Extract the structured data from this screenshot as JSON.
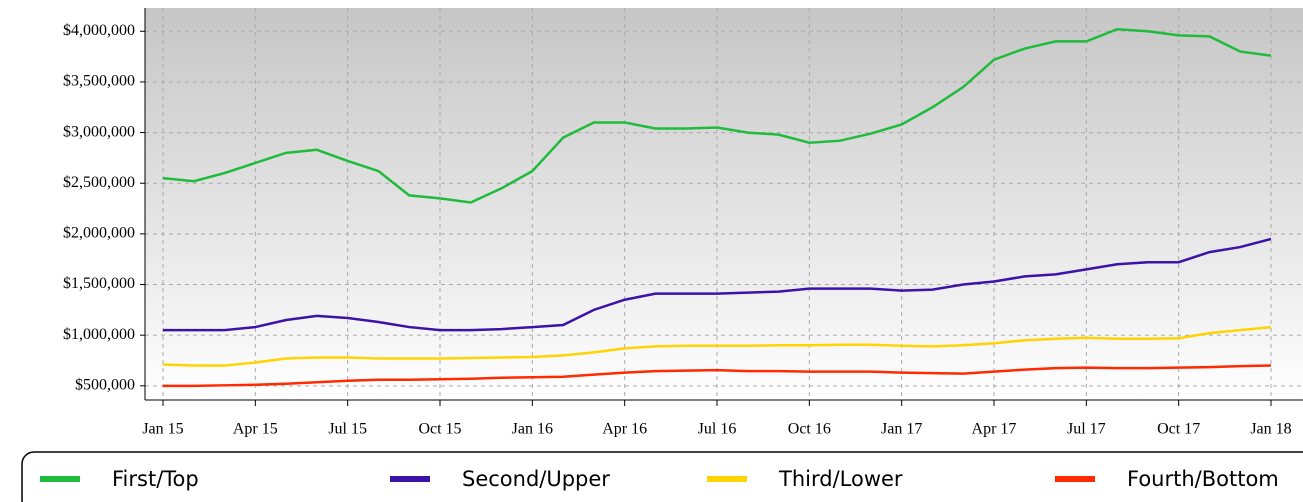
{
  "chart_data": {
    "type": "line",
    "categories": [
      "Jan 15",
      null,
      null,
      "Apr 15",
      null,
      null,
      "Jul 15",
      null,
      null,
      "Oct 15",
      null,
      null,
      "Jan 16",
      null,
      null,
      "Apr 16",
      null,
      null,
      "Jul 16",
      null,
      null,
      "Oct 16",
      null,
      null,
      "Jan 17",
      null,
      null,
      "Apr 17",
      null,
      null,
      "Jul 17",
      null,
      null,
      "Oct 17",
      null,
      null,
      "Jan 18"
    ],
    "series": [
      {
        "name": "First/Top",
        "color": "#1fbb3c",
        "values": [
          2550000,
          2520000,
          2600000,
          2700000,
          2800000,
          2830000,
          2720000,
          2620000,
          2380000,
          2350000,
          2310000,
          2450000,
          2620000,
          2950000,
          3100000,
          3100000,
          3040000,
          3040000,
          3050000,
          3000000,
          2980000,
          2900000,
          2920000,
          2990000,
          3080000,
          3250000,
          3450000,
          3720000,
          3830000,
          3900000,
          3900000,
          4020000,
          4000000,
          3960000,
          3950000,
          3800000,
          3760000
        ]
      },
      {
        "name": "Second/Upper",
        "color": "#3c12a8",
        "values": [
          1050000,
          1050000,
          1050000,
          1080000,
          1150000,
          1190000,
          1170000,
          1130000,
          1080000,
          1050000,
          1050000,
          1060000,
          1080000,
          1100000,
          1250000,
          1350000,
          1410000,
          1410000,
          1410000,
          1420000,
          1430000,
          1460000,
          1460000,
          1460000,
          1440000,
          1450000,
          1500000,
          1530000,
          1580000,
          1600000,
          1650000,
          1700000,
          1720000,
          1720000,
          1820000,
          1870000,
          1950000
        ]
      },
      {
        "name": "Third/Lower",
        "color": "#ffd400",
        "values": [
          710000,
          700000,
          700000,
          730000,
          770000,
          780000,
          780000,
          770000,
          770000,
          770000,
          775000,
          780000,
          785000,
          800000,
          830000,
          870000,
          890000,
          895000,
          895000,
          895000,
          900000,
          900000,
          905000,
          905000,
          895000,
          890000,
          900000,
          920000,
          950000,
          965000,
          975000,
          965000,
          965000,
          970000,
          1020000,
          1050000,
          1080000
        ]
      },
      {
        "name": "Fourth/Bottom",
        "color": "#ff2a00",
        "values": [
          500000,
          500000,
          505000,
          510000,
          520000,
          535000,
          550000,
          560000,
          560000,
          565000,
          570000,
          580000,
          585000,
          590000,
          610000,
          630000,
          645000,
          650000,
          655000,
          645000,
          645000,
          640000,
          640000,
          640000,
          630000,
          625000,
          620000,
          640000,
          660000,
          675000,
          680000,
          675000,
          675000,
          680000,
          685000,
          695000,
          700000
        ]
      }
    ],
    "ylim": [
      360000,
      4230000
    ],
    "yticks": [
      {
        "value": 500000,
        "label": "$500,000"
      },
      {
        "value": 1000000,
        "label": "$1,000,000"
      },
      {
        "value": 1500000,
        "label": "$1,500,000"
      },
      {
        "value": 2000000,
        "label": "$2,000,000"
      },
      {
        "value": 2500000,
        "label": "$2,500,000"
      },
      {
        "value": 3000000,
        "label": "$3,000,000"
      },
      {
        "value": 3500000,
        "label": "$3,500,000"
      },
      {
        "value": 4000000,
        "label": "$4,000,000"
      }
    ],
    "grid": true,
    "legend": "bottom"
  }
}
